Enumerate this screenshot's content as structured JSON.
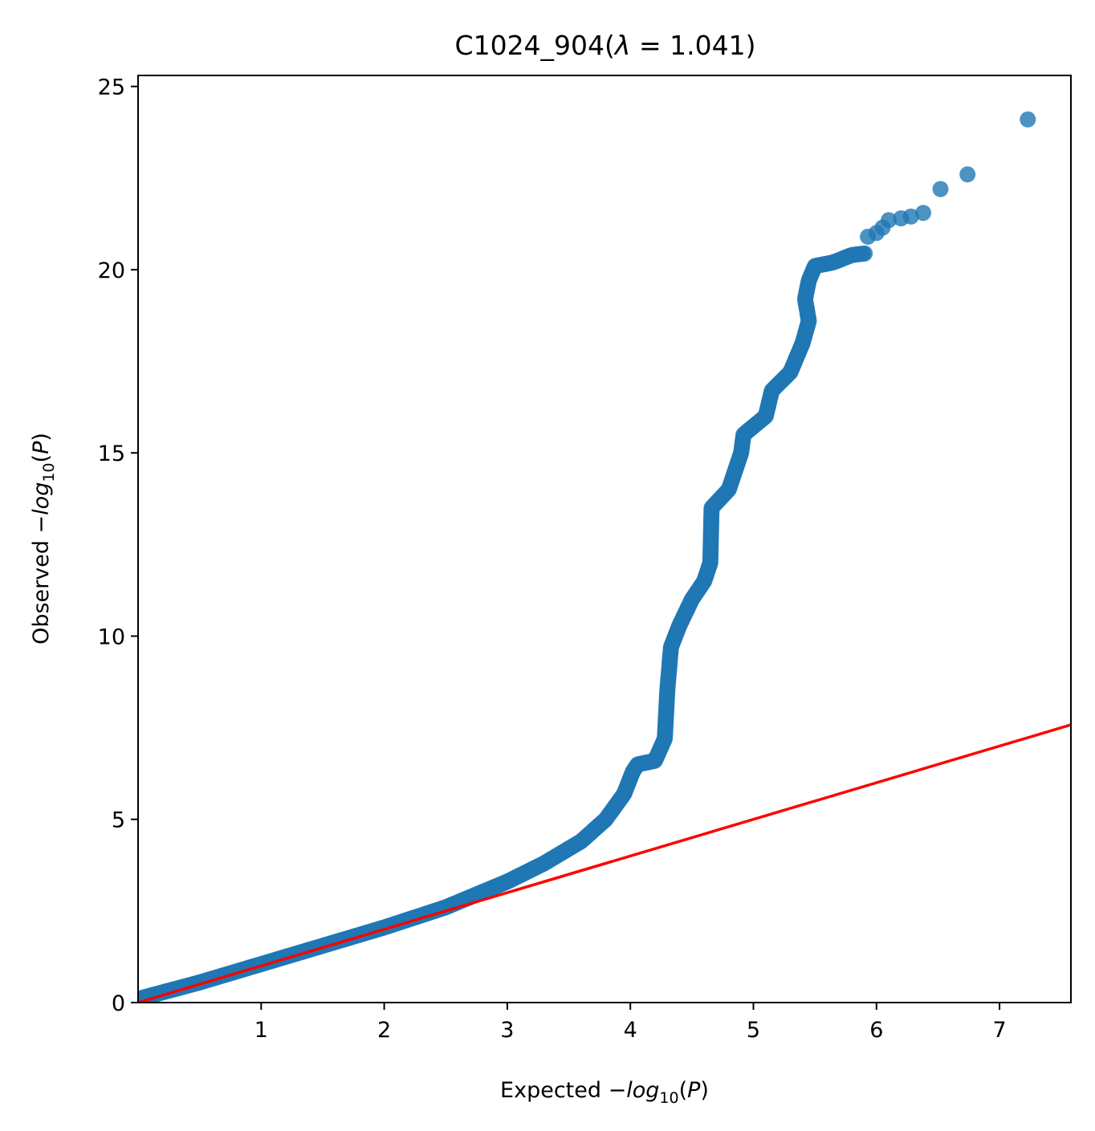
{
  "chart_data": {
    "type": "scatter",
    "title": {
      "prefix": "C1024_904(",
      "lambda_symbol": "λ",
      "equals": " = ",
      "lambda_value": "1.041",
      "suffix": ")"
    },
    "xlabel": {
      "prefix": "Expected −",
      "log": "log",
      "sub": "10",
      "suffix": "(",
      "var": "P",
      "close": ")"
    },
    "ylabel": {
      "prefix": "Observed −",
      "log": "log",
      "sub": "10",
      "suffix": "(",
      "var": "P",
      "close": ")"
    },
    "xlim": [
      0,
      7.58
    ],
    "ylim": [
      0,
      25.3
    ],
    "x_ticks": [
      1,
      2,
      3,
      4,
      5,
      6,
      7
    ],
    "y_ticks": [
      0,
      5,
      10,
      15,
      20,
      25
    ],
    "grid": false,
    "legend": "none",
    "colors": {
      "points": "#1f77b4",
      "reference_line": "#ff0000"
    },
    "reference_line": {
      "from": [
        0,
        0
      ],
      "to": [
        7.58,
        7.58
      ]
    },
    "curve": [
      [
        0.0,
        0.1
      ],
      [
        0.5,
        0.55
      ],
      [
        1.0,
        1.05
      ],
      [
        1.5,
        1.55
      ],
      [
        2.0,
        2.05
      ],
      [
        2.5,
        2.6
      ],
      [
        3.0,
        3.3
      ],
      [
        3.3,
        3.8
      ],
      [
        3.6,
        4.4
      ],
      [
        3.8,
        5.0
      ],
      [
        3.95,
        5.7
      ],
      [
        4.02,
        6.3
      ],
      [
        4.06,
        6.5
      ],
      [
        4.2,
        6.6
      ],
      [
        4.28,
        7.2
      ],
      [
        4.3,
        8.5
      ],
      [
        4.33,
        9.7
      ],
      [
        4.4,
        10.3
      ],
      [
        4.5,
        11.0
      ],
      [
        4.6,
        11.5
      ],
      [
        4.65,
        12.0
      ],
      [
        4.66,
        13.5
      ],
      [
        4.8,
        14.0
      ],
      [
        4.9,
        15.0
      ],
      [
        4.92,
        15.5
      ],
      [
        5.1,
        16.0
      ],
      [
        5.15,
        16.7
      ],
      [
        5.3,
        17.2
      ],
      [
        5.4,
        18.0
      ],
      [
        5.45,
        18.6
      ],
      [
        5.42,
        19.2
      ],
      [
        5.45,
        19.7
      ],
      [
        5.5,
        20.1
      ],
      [
        5.65,
        20.2
      ],
      [
        5.8,
        20.4
      ],
      [
        5.92,
        20.45
      ]
    ],
    "top_points": [
      [
        5.93,
        20.9
      ],
      [
        6.0,
        21.0
      ],
      [
        6.05,
        21.15
      ],
      [
        6.1,
        21.35
      ],
      [
        6.2,
        21.4
      ],
      [
        6.28,
        21.45
      ],
      [
        6.38,
        21.55
      ],
      [
        6.52,
        22.2
      ],
      [
        6.74,
        22.6
      ],
      [
        7.23,
        24.1
      ]
    ]
  }
}
